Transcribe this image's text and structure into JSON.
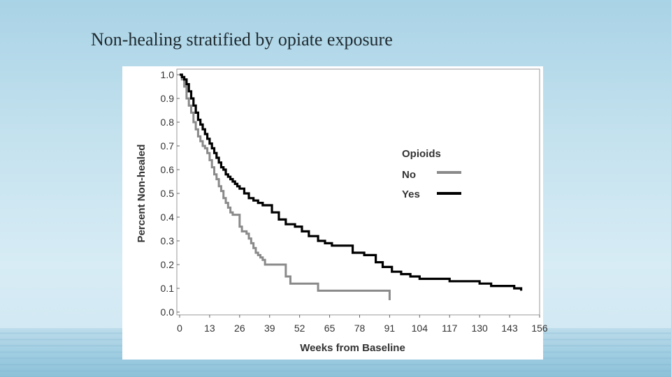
{
  "slide": {
    "title": "Non-healing stratified by opiate exposure"
  },
  "chart_data": {
    "type": "line",
    "title": "",
    "xlabel": "Weeks from Baseline",
    "ylabel": "Percent Non-healed",
    "xlim": [
      0,
      156
    ],
    "ylim": [
      0.0,
      1.0
    ],
    "xticks": [
      "0",
      "13",
      "26",
      "39",
      "52",
      "65",
      "78",
      "91",
      "104",
      "117",
      "130",
      "143",
      "156"
    ],
    "yticks": [
      "0.0",
      "0.1",
      "0.2",
      "0.3",
      "0.4",
      "0.5",
      "0.6",
      "0.7",
      "0.8",
      "0.9",
      "1.0"
    ],
    "legend_title": "Opioids",
    "series": [
      {
        "name": "No",
        "color": "#8a8a8a",
        "x": [
          0,
          1,
          2,
          3,
          4,
          5,
          6,
          7,
          8,
          9,
          10,
          11,
          12,
          13,
          14,
          15,
          16,
          17,
          18,
          19,
          20,
          21,
          22,
          23,
          24,
          25,
          26,
          27,
          28,
          29,
          30,
          31,
          32,
          33,
          34,
          35,
          36,
          37,
          38,
          39,
          40,
          41,
          42,
          43,
          44,
          45,
          46,
          47,
          48,
          49,
          50,
          55,
          60,
          65,
          70,
          75,
          80,
          85,
          90,
          91
        ],
        "y": [
          1.0,
          0.98,
          0.95,
          0.9,
          0.87,
          0.84,
          0.8,
          0.77,
          0.74,
          0.72,
          0.7,
          0.69,
          0.67,
          0.64,
          0.61,
          0.58,
          0.56,
          0.53,
          0.51,
          0.48,
          0.46,
          0.44,
          0.42,
          0.41,
          0.41,
          0.41,
          0.36,
          0.34,
          0.34,
          0.33,
          0.31,
          0.29,
          0.27,
          0.25,
          0.24,
          0.23,
          0.22,
          0.2,
          0.2,
          0.2,
          0.2,
          0.2,
          0.2,
          0.2,
          0.2,
          0.2,
          0.15,
          0.15,
          0.12,
          0.12,
          0.12,
          0.12,
          0.09,
          0.09,
          0.09,
          0.09,
          0.09,
          0.09,
          0.09,
          0.05
        ]
      },
      {
        "name": "Yes",
        "color": "#000000",
        "x": [
          0,
          1,
          2,
          3,
          4,
          5,
          6,
          7,
          8,
          9,
          10,
          11,
          12,
          13,
          14,
          15,
          16,
          17,
          18,
          19,
          20,
          21,
          22,
          23,
          24,
          25,
          26,
          28,
          30,
          32,
          34,
          36,
          38,
          40,
          43,
          46,
          50,
          53,
          56,
          60,
          63,
          66,
          70,
          75,
          80,
          85,
          88,
          92,
          96,
          100,
          104,
          110,
          117,
          125,
          130,
          135,
          140,
          145,
          148
        ],
        "y": [
          1.0,
          0.99,
          0.98,
          0.96,
          0.93,
          0.9,
          0.87,
          0.84,
          0.81,
          0.79,
          0.77,
          0.75,
          0.73,
          0.71,
          0.69,
          0.67,
          0.65,
          0.63,
          0.61,
          0.6,
          0.58,
          0.57,
          0.56,
          0.55,
          0.54,
          0.53,
          0.52,
          0.5,
          0.48,
          0.47,
          0.46,
          0.45,
          0.45,
          0.42,
          0.39,
          0.37,
          0.36,
          0.34,
          0.32,
          0.3,
          0.29,
          0.28,
          0.28,
          0.25,
          0.24,
          0.21,
          0.19,
          0.17,
          0.16,
          0.15,
          0.14,
          0.14,
          0.13,
          0.13,
          0.12,
          0.11,
          0.11,
          0.1,
          0.09
        ]
      }
    ]
  }
}
